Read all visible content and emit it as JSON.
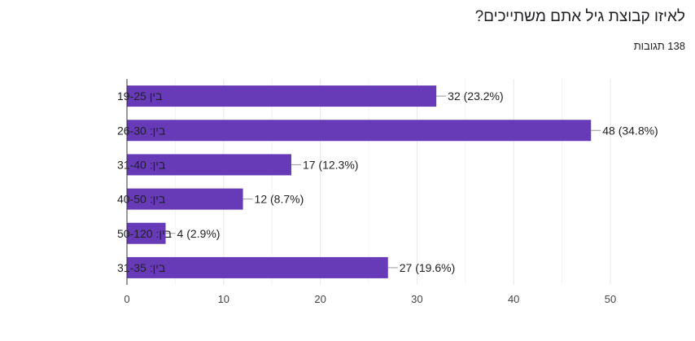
{
  "header": {
    "question_title": "לאיזו קבוצת גיל אתם משתייכים?",
    "response_count": "138 תגובות"
  },
  "colors": {
    "bar": "#673ab7",
    "grid": "#e8e8e8",
    "axis": "#333333",
    "text": "#202124",
    "tick": "#444444"
  },
  "chart_data": {
    "type": "bar",
    "orientation": "horizontal",
    "categories": [
      "בין 19-25",
      "בין: 26-30",
      "בין: 31-40",
      "בין: 40-50",
      "בין: 50-120",
      "בין: 31-35"
    ],
    "values": [
      32,
      48,
      17,
      12,
      4,
      27
    ],
    "data_labels": [
      "32 (23.2%)",
      "48 (34.8%)",
      "17 (12.3%)",
      "12 (8.7%)",
      "4 (2.9%)",
      "27 (19.6%)"
    ],
    "xlim": [
      0,
      50
    ],
    "x_ticks": [
      0,
      10,
      20,
      30,
      40,
      50
    ],
    "x_tick_labels": [
      "0",
      "10",
      "20",
      "30",
      "40",
      "50"
    ],
    "grid": true,
    "title": "לאיזו קבוצת גיל אתם משתייכים?",
    "xlabel": "",
    "ylabel": ""
  }
}
